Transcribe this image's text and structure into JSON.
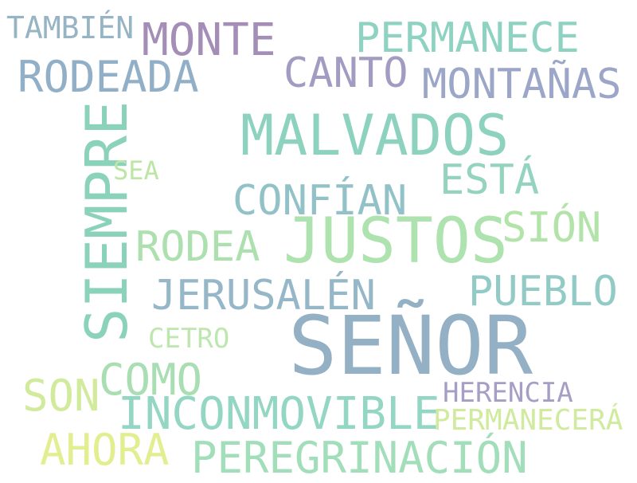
{
  "words": [
    {
      "text": "TAMBIÉN",
      "color": "#96B4C4"
    },
    {
      "text": "MONTE",
      "color": "#A48DB6"
    },
    {
      "text": "PERMANECE",
      "color": "#8ED2C2"
    },
    {
      "text": "RODEADA",
      "color": "#91AFC6"
    },
    {
      "text": "CANTO",
      "color": "#A39CC2"
    },
    {
      "text": "MONTAÑAS",
      "color": "#9CA6C8"
    },
    {
      "text": "SIEMPRE",
      "color": "#8BD2BA"
    },
    {
      "text": "MALVADOS",
      "color": "#8DD2BE"
    },
    {
      "text": "SEA",
      "color": "#BDE6A6"
    },
    {
      "text": "ESTÁ",
      "color": "#94D3C0"
    },
    {
      "text": "CONFÍAN",
      "color": "#92C2C8"
    },
    {
      "text": "SIÓN",
      "color": "#B2E3A8"
    },
    {
      "text": "JUSTOS",
      "color": "#AEE2AE"
    },
    {
      "text": "RODEA",
      "color": "#ACE0AE"
    },
    {
      "text": "PUEBLO",
      "color": "#92CAC6"
    },
    {
      "text": "JERUSALÉN",
      "color": "#96B7C8"
    },
    {
      "text": "CETRO",
      "color": "#BEE7B0"
    },
    {
      "text": "SEÑOR",
      "color": "#94B0C4"
    },
    {
      "text": "COMO",
      "color": "#A8DEB2"
    },
    {
      "text": "SON",
      "color": "#D2EA9C"
    },
    {
      "text": "HERENCIA",
      "color": "#A69EC4"
    },
    {
      "text": "INCONMOVIBLE",
      "color": "#94D6C4"
    },
    {
      "text": "PERMANECERÁ",
      "color": "#D0EA9E"
    },
    {
      "text": "AHORA",
      "color": "#E2EE90"
    },
    {
      "text": "PEREGRINACIÓN",
      "color": "#A2DEBA"
    }
  ]
}
